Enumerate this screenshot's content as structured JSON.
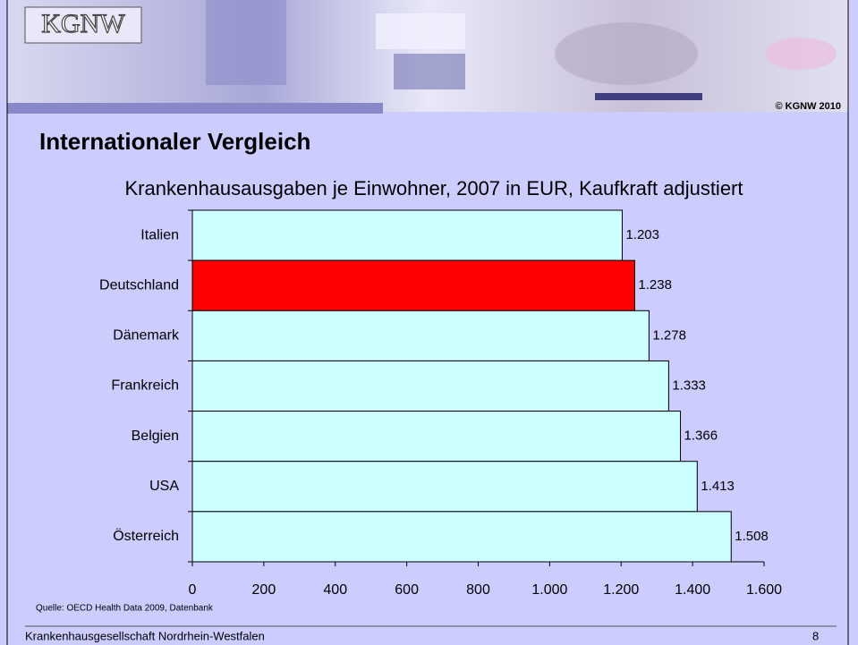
{
  "logo": "KGNW",
  "copyright": "© KGNW 2010",
  "slide_title": "Internationaler Vergleich",
  "source": "Quelle: OECD Health Data 2009, Datenbank",
  "footer": {
    "organization": "Krankenhausgesellschaft Nordrhein-Westfalen",
    "page": "8"
  },
  "chart_data": {
    "type": "hbar",
    "title": "Krankenhausausgaben je Einwohner, 2007 in EUR, Kaufkraft adjustiert",
    "categories": [
      "Italien",
      "Deutschland",
      "Dänemark",
      "Frankreich",
      "Belgien",
      "USA",
      "Österreich"
    ],
    "values": [
      1203,
      1238,
      1278,
      1333,
      1366,
      1413,
      1508
    ],
    "value_labels": [
      "1.203",
      "1.238",
      "1.278",
      "1.333",
      "1.366",
      "1.413",
      "1.508"
    ],
    "colors": [
      "#ccffff",
      "#ff0000",
      "#ccffff",
      "#ccffff",
      "#ccffff",
      "#ccffff",
      "#ccffff"
    ],
    "xlim": [
      0,
      1600
    ],
    "xticks": [
      0,
      200,
      400,
      600,
      800,
      {
        "value": 1000,
        "label": "1.000"
      },
      {
        "value": 1200,
        "label": "1.200"
      },
      {
        "value": 1400,
        "label": "1.400"
      },
      {
        "value": 1600,
        "label": "1.600"
      }
    ],
    "grid": false
  }
}
